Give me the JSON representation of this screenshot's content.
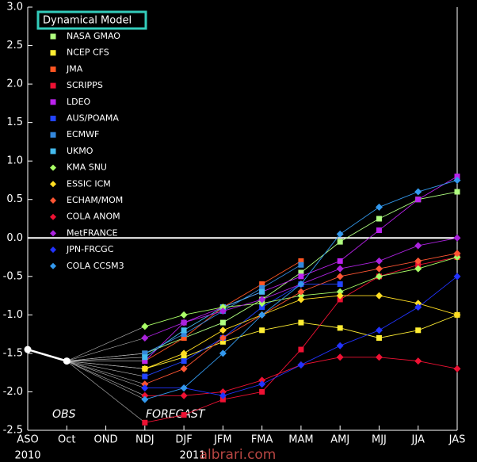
{
  "chart_data": {
    "type": "line",
    "legend_title": "Dynamical Model",
    "annotations": [
      "OBS",
      "FORECAST"
    ],
    "year_labels": [
      "2010",
      "2011"
    ],
    "watermark": "albrari.com",
    "categories": [
      "ASO",
      "Oct",
      "OND",
      "NDJ",
      "DJF",
      "JFM",
      "FMA",
      "MAM",
      "AMJ",
      "MJJ",
      "JJA",
      "JAS"
    ],
    "ylim": [
      -2.5,
      3.0
    ],
    "yticks": [
      {
        "value": -2.5,
        "label": "-2.5"
      },
      {
        "value": -2.0,
        "label": "-2.0"
      },
      {
        "value": -1.5,
        "label": "-1.5"
      },
      {
        "value": -1.0,
        "label": "-1.0"
      },
      {
        "value": -0.5,
        "label": "-0.5"
      },
      {
        "value": 0.0,
        "label": "0.0"
      },
      {
        "value": 0.5,
        "label": "0.5"
      },
      {
        "value": 1.0,
        "label": "1.0"
      },
      {
        "value": 1.5,
        "label": "1.5"
      },
      {
        "value": 2.0,
        "label": "2.0"
      },
      {
        "value": 2.5,
        "label": "2.5"
      },
      {
        "value": 3.0,
        "label": "3.0"
      }
    ],
    "zero_line": true,
    "obs": {
      "color": "#ffffff",
      "values": [
        -1.45,
        -1.6,
        null,
        null,
        null,
        null,
        null,
        null,
        null,
        null,
        null,
        null
      ]
    },
    "series": [
      {
        "name": "NASA GMAO",
        "color": "#b0ff80",
        "marker": "square",
        "values": [
          null,
          null,
          null,
          -1.5,
          -1.3,
          -1.1,
          -0.8,
          -0.45,
          -0.05,
          0.25,
          0.5,
          0.6
        ]
      },
      {
        "name": "NCEP CFS",
        "color": "#ffee33",
        "marker": "square",
        "values": [
          null,
          null,
          null,
          -1.7,
          -1.55,
          -1.35,
          -1.2,
          -1.1,
          -1.17,
          -1.3,
          -1.2,
          -1.0
        ]
      },
      {
        "name": "JMA",
        "color": "#ff5522",
        "marker": "square",
        "values": [
          null,
          null,
          null,
          -1.6,
          -1.3,
          -0.9,
          -0.6,
          -0.3,
          null,
          null,
          null,
          null
        ]
      },
      {
        "name": "SCRIPPS",
        "color": "#ee1133",
        "marker": "square",
        "values": [
          null,
          null,
          null,
          -2.4,
          -2.3,
          -2.1,
          -2.0,
          -1.45,
          -0.8,
          -0.5,
          -0.35,
          -0.25
        ]
      },
      {
        "name": "LDEO",
        "color": "#bb22ee",
        "marker": "square",
        "values": [
          null,
          null,
          null,
          -1.6,
          -1.1,
          -0.9,
          -0.7,
          -0.5,
          -0.3,
          0.1,
          0.5,
          0.8
        ]
      },
      {
        "name": "AUS/POAMA",
        "color": "#2244ff",
        "marker": "square",
        "values": [
          null,
          null,
          null,
          -1.8,
          -1.6,
          -1.3,
          -0.9,
          -0.6,
          -0.6,
          null,
          null,
          null
        ]
      },
      {
        "name": "ECMWF",
        "color": "#3388dd",
        "marker": "square",
        "values": [
          null,
          null,
          null,
          -1.5,
          -1.25,
          -0.95,
          -0.65,
          -0.35,
          null,
          null,
          null,
          null
        ]
      },
      {
        "name": "UKMO",
        "color": "#44bbee",
        "marker": "square",
        "values": [
          null,
          null,
          null,
          -1.55,
          -1.2,
          -0.9,
          -0.7,
          null,
          null,
          null,
          null,
          null
        ]
      },
      {
        "name": "KMA SNU",
        "color": "#aaff66",
        "marker": "diamond",
        "values": [
          null,
          null,
          null,
          -1.15,
          -1.0,
          -0.9,
          -0.85,
          -0.75,
          -0.7,
          -0.5,
          -0.4,
          -0.25
        ]
      },
      {
        "name": "ESSIC ICM",
        "color": "#ffdd22",
        "marker": "diamond",
        "values": [
          null,
          null,
          null,
          -1.7,
          -1.5,
          -1.2,
          -1.0,
          -0.8,
          -0.75,
          -0.75,
          -0.85,
          -1.0
        ]
      },
      {
        "name": "ECHAM/MOM",
        "color": "#ff5533",
        "marker": "diamond",
        "values": [
          null,
          null,
          null,
          -1.9,
          -1.7,
          -1.3,
          -1.0,
          -0.7,
          -0.5,
          -0.4,
          -0.3,
          -0.2
        ]
      },
      {
        "name": "COLA ANOM",
        "color": "#ee1133",
        "marker": "diamond",
        "values": [
          null,
          null,
          null,
          -2.05,
          -2.05,
          -2.0,
          -1.85,
          -1.65,
          -1.55,
          -1.55,
          -1.6,
          -1.7
        ]
      },
      {
        "name": "MetFRANCE",
        "color": "#aa22dd",
        "marker": "diamond",
        "values": [
          null,
          null,
          null,
          -1.3,
          -1.1,
          -0.95,
          -0.8,
          -0.6,
          -0.4,
          -0.3,
          -0.1,
          0.0
        ]
      },
      {
        "name": "JPN-FRCGC",
        "color": "#2233ff",
        "marker": "diamond",
        "values": [
          null,
          null,
          null,
          -1.95,
          -1.95,
          -2.05,
          -1.9,
          -1.65,
          -1.4,
          -1.2,
          -0.9,
          -0.5
        ]
      },
      {
        "name": "COLA CCSM3",
        "color": "#3399ee",
        "marker": "diamond",
        "values": [
          null,
          null,
          null,
          -2.1,
          -1.95,
          -1.5,
          -1.0,
          -0.6,
          0.05,
          0.4,
          0.6,
          0.75
        ]
      }
    ]
  }
}
